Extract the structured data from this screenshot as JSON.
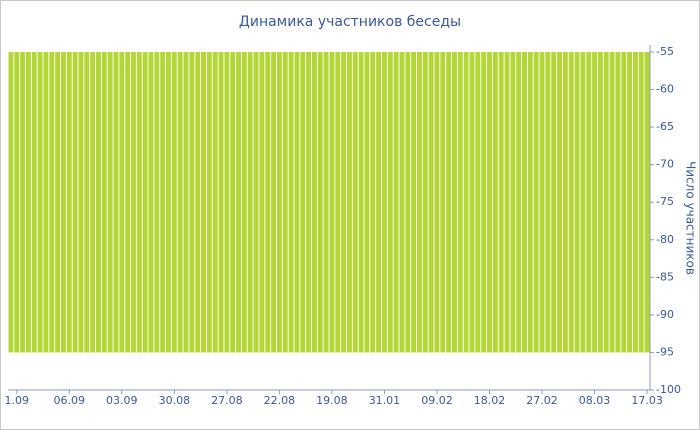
{
  "chart_data": {
    "type": "bar",
    "title": "Динамика участников беседы",
    "y_label": "Число участников",
    "categories": [
      null,
      "1.09",
      null,
      null,
      null,
      null,
      null,
      null,
      null,
      null,
      "06.09",
      null,
      null,
      null,
      null,
      null,
      null,
      null,
      null,
      "03.09",
      null,
      null,
      null,
      null,
      null,
      null,
      null,
      null,
      "30.08",
      null,
      null,
      null,
      null,
      null,
      null,
      null,
      null,
      "27.08",
      null,
      null,
      null,
      null,
      null,
      null,
      null,
      null,
      "22.08",
      null,
      null,
      null,
      null,
      null,
      null,
      null,
      null,
      "19.08",
      null,
      null,
      null,
      null,
      null,
      null,
      null,
      null,
      "31.01",
      null,
      null,
      null,
      null,
      null,
      null,
      null,
      null,
      "09.02",
      null,
      null,
      null,
      null,
      null,
      null,
      null,
      null,
      "18.02",
      null,
      null,
      null,
      null,
      null,
      null,
      null,
      null,
      "27.02",
      null,
      null,
      null,
      null,
      null,
      null,
      null,
      null,
      "08.03",
      null,
      null,
      null,
      null,
      null,
      null,
      null,
      null,
      "17.03"
    ],
    "values": [
      -55,
      -55,
      -55,
      -55,
      -55,
      -55,
      -55,
      -55,
      -55,
      -55,
      -55,
      -55,
      -55,
      -55,
      -55,
      -55,
      -55,
      -55,
      -55,
      -55,
      -55,
      -55,
      -55,
      -55,
      -55,
      -55,
      -55,
      -55,
      -55,
      -55,
      -55,
      -55,
      -55,
      -55,
      -55,
      -55,
      -55,
      -55,
      -55,
      -55,
      -55,
      -55,
      -55,
      -55,
      -55,
      -55,
      -55,
      -55,
      -55,
      -55,
      -55,
      -55,
      -55,
      -55,
      -55,
      -55,
      -55,
      -55,
      -55,
      -55,
      -55,
      -55,
      -55,
      -55,
      -55,
      -55,
      -55,
      -55,
      -55,
      -55,
      -55,
      -55,
      -55,
      -55,
      -55,
      -55,
      -55,
      -55,
      -55,
      -55,
      -55,
      -55,
      -55,
      -55,
      -55,
      -55,
      -55,
      -55,
      -55,
      -55,
      -55,
      -55,
      -55,
      -55,
      -55,
      -55,
      -55,
      -55,
      -55,
      -55,
      -55,
      -55,
      -55,
      -55,
      -55,
      -55,
      -55,
      -55,
      -55,
      -55
    ],
    "bar_bottom": -95,
    "color": "#b4d636",
    "ylim": [
      -100,
      -55
    ],
    "yticks": [
      -55,
      -60,
      -65,
      -70,
      -75,
      -80,
      -85,
      -90,
      -95,
      -100
    ]
  }
}
